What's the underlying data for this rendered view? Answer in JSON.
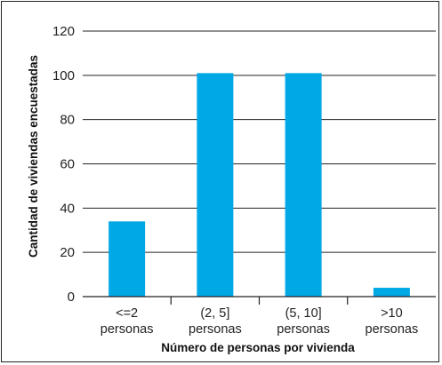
{
  "chart_data": {
    "type": "bar",
    "categories": [
      {
        "line1": "<=2",
        "line2": "personas"
      },
      {
        "line1": "(2, 5]",
        "line2": "personas"
      },
      {
        "line1": "(5, 10]",
        "line2": "personas"
      },
      {
        "line1": ">10",
        "line2": "personas"
      }
    ],
    "values": [
      34,
      101,
      101,
      4
    ],
    "xlabel": "Número de personas por vivienda",
    "ylabel": "Cantidad de viviendas encuestadas",
    "ylim": [
      0,
      120
    ],
    "yticks": [
      0,
      20,
      40,
      60,
      80,
      100,
      120
    ],
    "grid": true,
    "bar_color": "#00a9e6"
  }
}
